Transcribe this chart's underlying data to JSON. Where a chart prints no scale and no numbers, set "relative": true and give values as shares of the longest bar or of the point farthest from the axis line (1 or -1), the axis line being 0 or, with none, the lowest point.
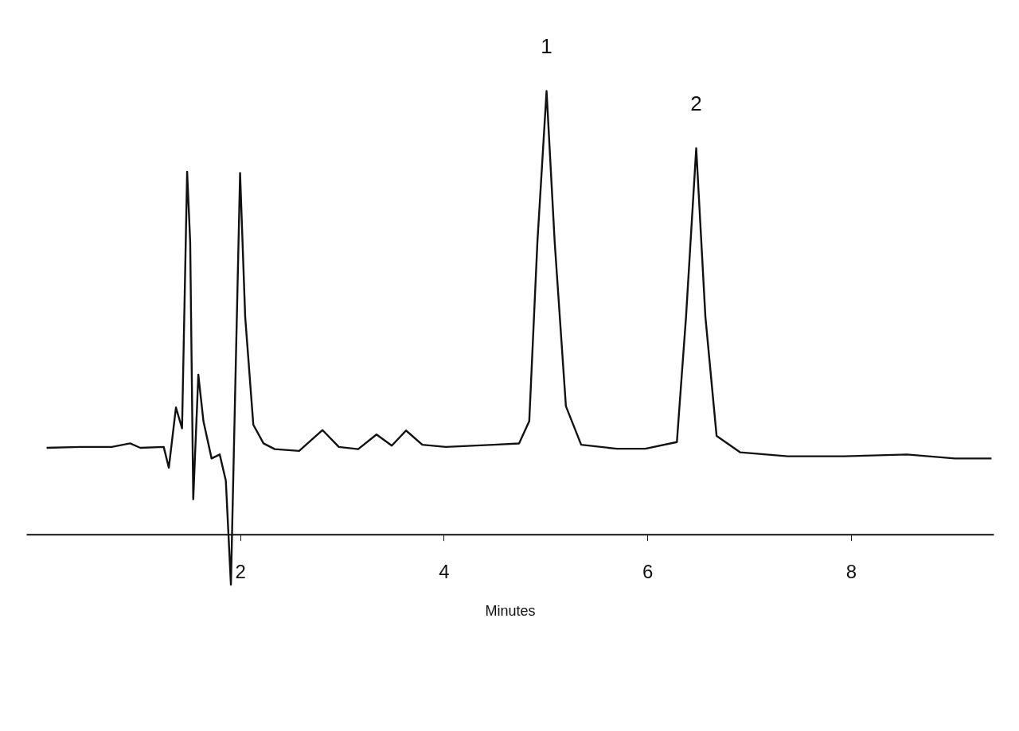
{
  "chart_data": {
    "type": "line",
    "relative": true,
    "xlabel": "Minutes",
    "xlim": [
      -0.1,
      9.4
    ],
    "xticks": [
      2,
      4,
      6,
      8
    ],
    "grid": false,
    "marker": "none",
    "line_style": "solid",
    "series": [
      {
        "color": "#111111",
        "x": [
          0.1,
          0.43,
          0.74,
          0.92,
          1.02,
          1.25,
          1.3,
          1.37,
          1.43,
          1.48,
          1.51,
          1.54,
          1.59,
          1.64,
          1.72,
          1.8,
          1.86,
          1.91,
          1.96,
          2.0,
          2.05,
          2.13,
          2.23,
          2.34,
          2.58,
          2.81,
          2.97,
          3.16,
          3.34,
          3.49,
          3.63,
          3.79,
          4.02,
          4.49,
          4.74,
          4.84,
          4.92,
          5.01,
          5.09,
          5.2,
          5.35,
          5.7,
          5.98,
          6.29,
          6.38,
          6.48,
          6.57,
          6.68,
          6.91,
          7.38,
          7.93,
          8.55,
          9.02,
          9.38
        ],
        "values": [
          0.195,
          0.197,
          0.197,
          0.205,
          0.195,
          0.197,
          0.15,
          0.286,
          0.239,
          0.818,
          0.659,
          0.079,
          0.36,
          0.255,
          0.171,
          0.18,
          0.121,
          -0.114,
          0.407,
          0.815,
          0.491,
          0.247,
          0.205,
          0.192,
          0.188,
          0.235,
          0.197,
          0.192,
          0.225,
          0.2,
          0.234,
          0.202,
          0.197,
          0.202,
          0.205,
          0.255,
          0.659,
          1.0,
          0.659,
          0.289,
          0.202,
          0.193,
          0.193,
          0.208,
          0.491,
          0.871,
          0.491,
          0.222,
          0.185,
          0.176,
          0.176,
          0.18,
          0.171,
          0.171
        ]
      }
    ],
    "annotations": [
      {
        "text": "1",
        "x": 5.01,
        "y": 1.0
      },
      {
        "text": "2",
        "x": 6.48,
        "y": 0.871
      }
    ]
  }
}
